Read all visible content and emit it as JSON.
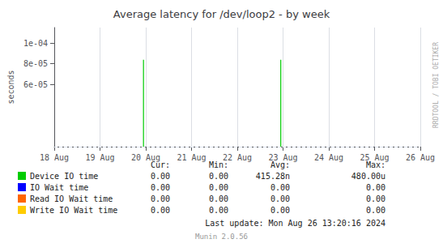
{
  "chart_data": {
    "type": "vlines",
    "title": "Average latency for /dev/loop2 - by week",
    "ylabel": "seconds",
    "xlim": [
      0,
      8
    ],
    "xticks": [
      {
        "value": 0,
        "label": "18 Aug"
      },
      {
        "value": 1,
        "label": "19 Aug"
      },
      {
        "value": 2,
        "label": "20 Aug"
      },
      {
        "value": 3,
        "label": "21 Aug"
      },
      {
        "value": 4,
        "label": "22 Aug"
      },
      {
        "value": 5,
        "label": "23 Aug"
      },
      {
        "value": 6,
        "label": "24 Aug"
      },
      {
        "value": 7,
        "label": "25 Aug"
      },
      {
        "value": 8,
        "label": "26 Aug"
      }
    ],
    "ylim": [
      0,
      0.000115
    ],
    "yticks": [
      {
        "value": 6e-05,
        "label": "6e-05"
      },
      {
        "value": 8e-05,
        "label": "8e-05"
      },
      {
        "value": 0.0001,
        "label": "1e-04"
      }
    ],
    "grid": true,
    "stats_headers": [
      "Cur:",
      "Min:",
      "Avg:",
      "Max:"
    ],
    "series": [
      {
        "name": "Device IO time",
        "color": "#00cc00",
        "x": [
          1.95,
          4.95
        ],
        "values": [
          8.4e-05,
          8.4e-05
        ],
        "stats": [
          "0.00",
          "0.00",
          "415.28n",
          "480.00u"
        ]
      },
      {
        "name": "IO Wait time",
        "color": "#0000ff",
        "x": [],
        "values": [],
        "stats": [
          "0.00",
          "0.00",
          "0.00",
          "0.00"
        ]
      },
      {
        "name": "Read IO Wait time",
        "color": "#ff6600",
        "x": [],
        "values": [],
        "stats": [
          "0.00",
          "0.00",
          "0.00",
          "0.00"
        ]
      },
      {
        "name": "Write IO Wait time",
        "color": "#ffcc00",
        "x": [],
        "values": [],
        "stats": [
          "0.00",
          "0.00",
          "0.00",
          "0.00"
        ]
      }
    ],
    "last_update": "Last update: Mon Aug 26 13:20:16 2024",
    "watermark": "Munin 2.0.56",
    "side_label": "RRDTOOL / TOBI OETIKER"
  }
}
